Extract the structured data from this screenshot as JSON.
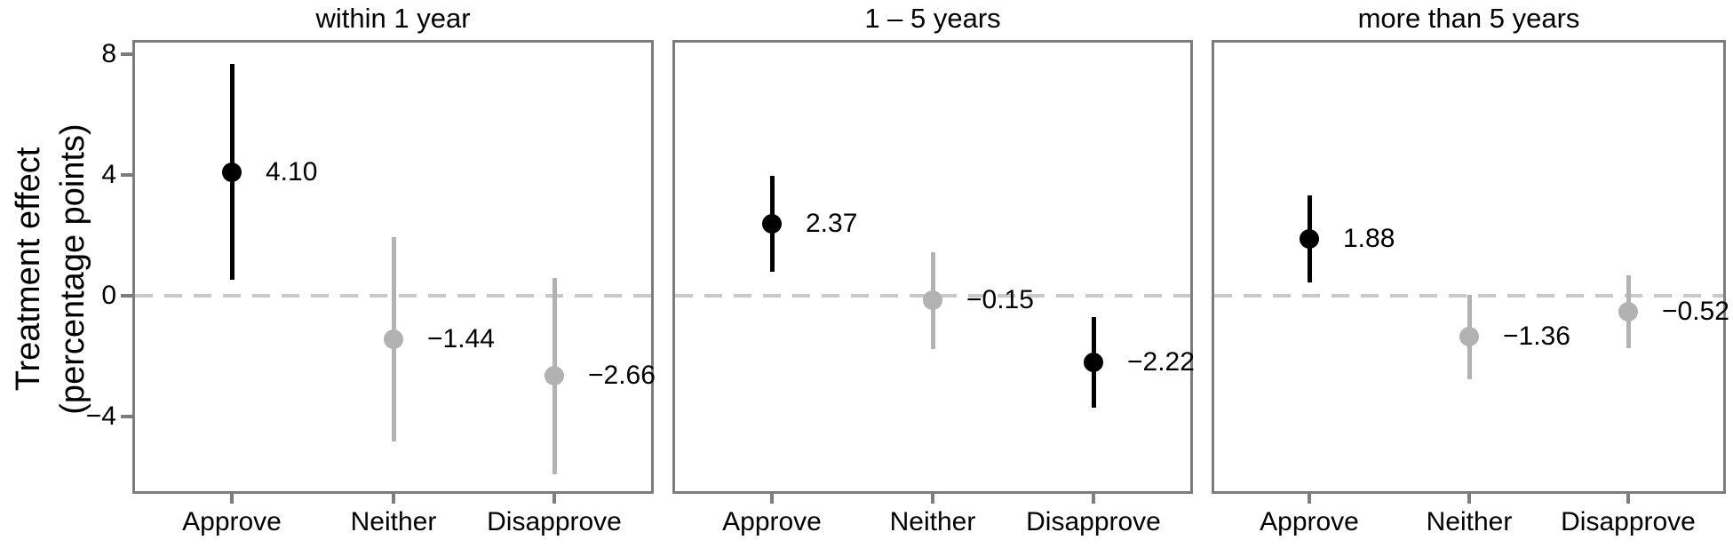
{
  "figure": {
    "y_axis": {
      "title_line1": "Treatment effect",
      "title_line2": "(percentage points)",
      "ticks": [
        {
          "value": 8,
          "label": "8"
        },
        {
          "value": 4,
          "label": "4"
        },
        {
          "value": 0,
          "label": "0"
        },
        {
          "value": -4,
          "label": "−4"
        }
      ]
    }
  },
  "chart_data": {
    "type": "scatter",
    "subtype": "dot-and-errorbar coefficient plot, 3 facets",
    "title": "",
    "xlabel": "",
    "ylabel": "Treatment effect (percentage points)",
    "ylim": [
      -6.6,
      8.5
    ],
    "yticks": [
      -4,
      0,
      4,
      8
    ],
    "zero_reference_line": 0,
    "grid": false,
    "legend": "none",
    "categories": [
      "Approve",
      "Neither",
      "Disapprove"
    ],
    "panels": [
      {
        "title": "within 1 year",
        "points": [
          {
            "category": "Approve",
            "value": 4.1,
            "label": "4.10",
            "ci_low": 0.52,
            "ci_high": 7.68,
            "color": "#000000"
          },
          {
            "category": "Neither",
            "value": -1.44,
            "label": "−1.44",
            "ci_low": -4.82,
            "ci_high": 1.94,
            "color": "#b2b2b2"
          },
          {
            "category": "Disapprove",
            "value": -2.66,
            "label": "−2.66",
            "ci_low": -5.91,
            "ci_high": 0.59,
            "color": "#b2b2b2"
          }
        ]
      },
      {
        "title": "1 – 5 years",
        "points": [
          {
            "category": "Approve",
            "value": 2.37,
            "label": "2.37",
            "ci_low": 0.78,
            "ci_high": 3.96,
            "color": "#000000"
          },
          {
            "category": "Neither",
            "value": -0.15,
            "label": "−0.15",
            "ci_low": -1.75,
            "ci_high": 1.45,
            "color": "#b2b2b2"
          },
          {
            "category": "Disapprove",
            "value": -2.22,
            "label": "−2.22",
            "ci_low": -3.72,
            "ci_high": -0.72,
            "color": "#000000"
          }
        ]
      },
      {
        "title": "more than 5 years",
        "points": [
          {
            "category": "Approve",
            "value": 1.88,
            "label": "1.88",
            "ci_low": 0.44,
            "ci_high": 3.32,
            "color": "#000000"
          },
          {
            "category": "Neither",
            "value": -1.36,
            "label": "−1.36",
            "ci_low": -2.76,
            "ci_high": 0.04,
            "color": "#b2b2b2"
          },
          {
            "category": "Disapprove",
            "value": -0.52,
            "label": "−0.52",
            "ci_low": -1.73,
            "ci_high": 0.69,
            "color": "#b2b2b2"
          }
        ]
      }
    ],
    "colors": {
      "significant_point": "#000000",
      "nonsignificant_point": "#b2b2b2",
      "zero_line": "#c9c9c9",
      "panel_border": "#7d7d7d",
      "tick_mark": "#7d7d7d",
      "text": "#000000"
    }
  }
}
